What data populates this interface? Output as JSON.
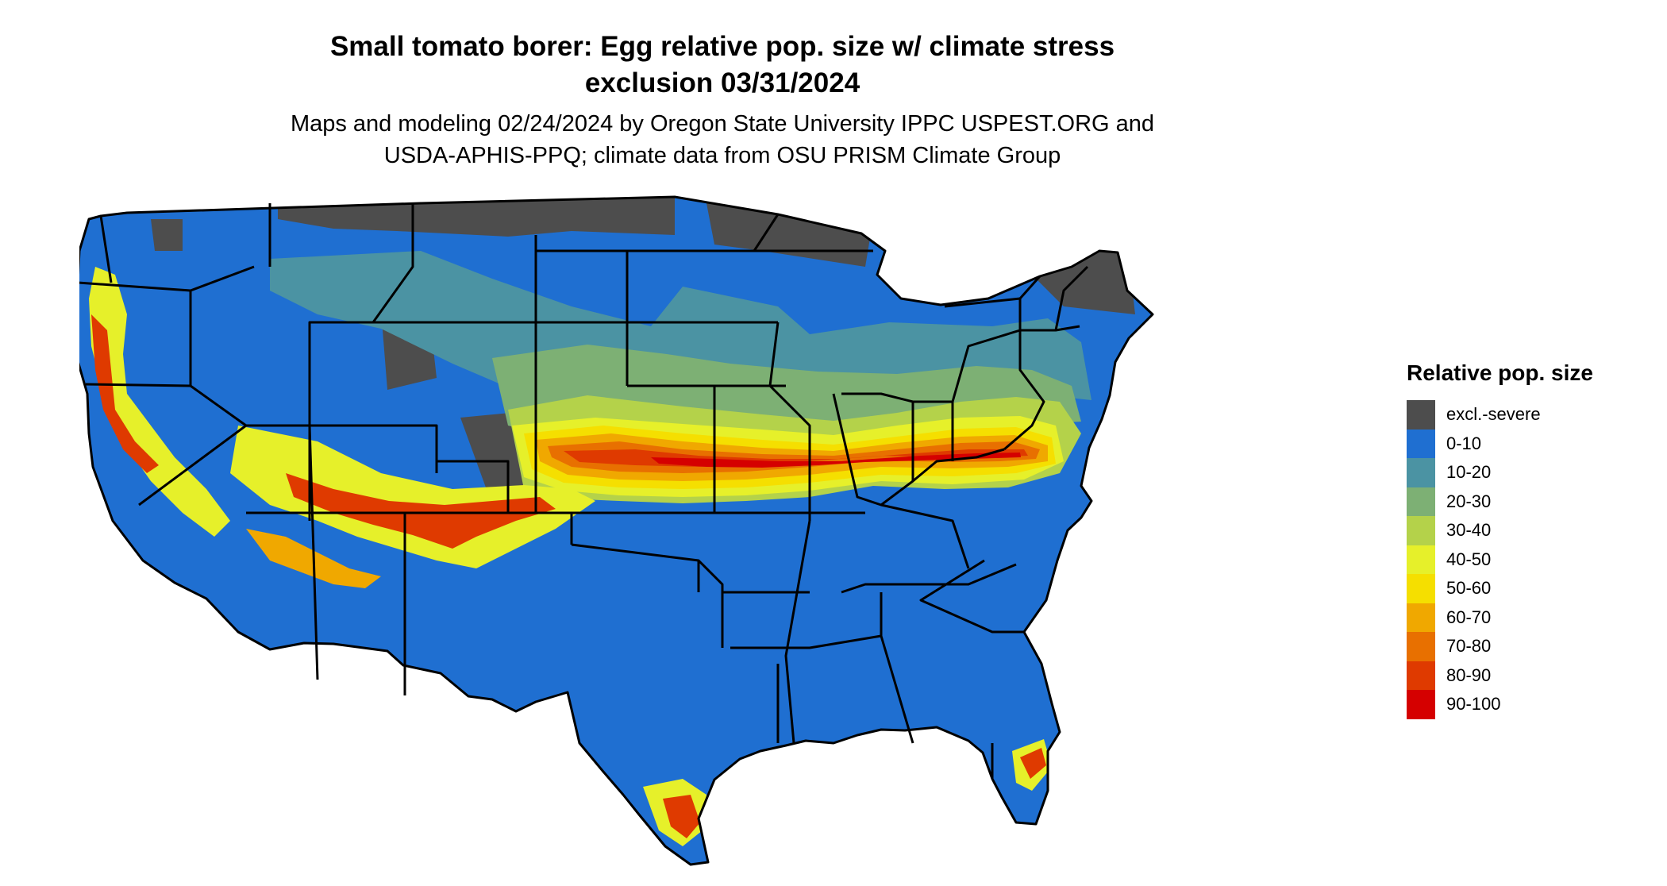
{
  "title_lines": [
    "Small tomato borer: Egg relative pop. size w/ climate stress",
    "exclusion 03/31/2024"
  ],
  "subtitle_lines": [
    "Maps and modeling 02/24/2024 by Oregon State University IPPC USPEST.ORG and",
    "USDA-APHIS-PPQ; climate data from OSU PRISM Climate Group"
  ],
  "legend": {
    "title": "Relative pop. size",
    "items": [
      {
        "label": "excl.-severe",
        "color": "#4d4d4d"
      },
      {
        "label": "0-10",
        "color": "#1f6fd1"
      },
      {
        "label": "10-20",
        "color": "#4b93a3"
      },
      {
        "label": "20-30",
        "color": "#7db074"
      },
      {
        "label": "30-40",
        "color": "#b4d24a"
      },
      {
        "label": "40-50",
        "color": "#e6f02a"
      },
      {
        "label": "50-60",
        "color": "#f5df00"
      },
      {
        "label": "60-70",
        "color": "#f0a800"
      },
      {
        "label": "70-80",
        "color": "#e87000"
      },
      {
        "label": "80-90",
        "color": "#df3a00"
      },
      {
        "label": "90-100",
        "color": "#d50000"
      }
    ]
  },
  "map": {
    "background_class": "0-10",
    "region_classes": [
      "excl.-severe",
      "10-20",
      "20-30",
      "30-40",
      "40-50",
      "50-60",
      "60-70",
      "70-80",
      "80-90",
      "90-100"
    ]
  }
}
